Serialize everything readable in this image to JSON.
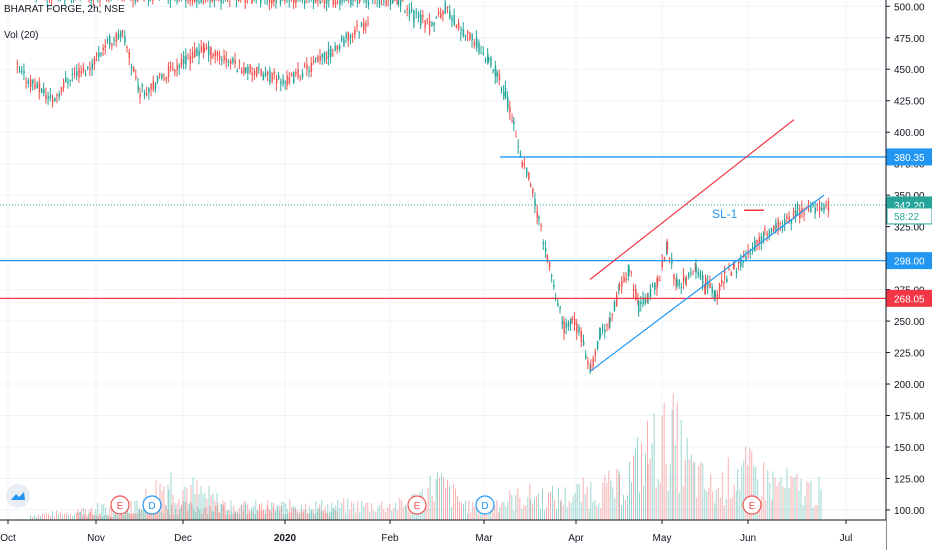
{
  "header": {
    "symbol_line": "BHARAT FORGE, 2h, NSE",
    "volume_line": "Vol (20)"
  },
  "colors": {
    "up": "#26a69a",
    "down": "#ef5350",
    "blue_line": "#2196f3",
    "red_line": "#f23645",
    "grid": "#f0f3fa"
  },
  "chart_data": {
    "type": "candlestick",
    "symbol": "BHARAT FORGE",
    "interval": "2h",
    "exchange": "NSE",
    "x_ticks": [
      "Oct",
      "Nov",
      "Dec",
      "2020",
      "Feb",
      "Mar",
      "Apr",
      "May",
      "Jun",
      "Jul"
    ],
    "y_ticks": [
      "500.00",
      "475.00",
      "450.00",
      "425.00",
      "400.00",
      "375.00",
      "350.00",
      "325.00",
      "300.00",
      "275.00",
      "250.00",
      "225.00",
      "200.00",
      "175.00",
      "150.00",
      "125.00",
      "100.00"
    ],
    "ylim": [
      92,
      505
    ],
    "price_trend": [
      {
        "month": "Oct",
        "price": 448
      },
      {
        "month": "Oct",
        "price": 438
      },
      {
        "month": "Oct",
        "price": 425
      },
      {
        "month": "Oct",
        "price": 445
      },
      {
        "month": "Oct",
        "price": 450
      },
      {
        "month": "Nov",
        "price": 470
      },
      {
        "month": "Nov",
        "price": 478
      },
      {
        "month": "Nov",
        "price": 432
      },
      {
        "month": "Nov",
        "price": 440
      },
      {
        "month": "Nov",
        "price": 452
      },
      {
        "month": "Dec",
        "price": 466
      },
      {
        "month": "Dec",
        "price": 450
      },
      {
        "month": "Dec",
        "price": 440
      },
      {
        "month": "Dec",
        "price": 462
      },
      {
        "month": "Dec",
        "price": 490
      },
      {
        "month": "2020",
        "price": 500
      },
      {
        "month": "2020",
        "price": 497
      },
      {
        "month": "2020",
        "price": 492
      },
      {
        "month": "2020",
        "price": 486
      },
      {
        "month": "2020",
        "price": 510
      },
      {
        "month": "Feb",
        "price": 505
      },
      {
        "month": "Feb",
        "price": 493
      },
      {
        "month": "Feb",
        "price": 485
      },
      {
        "month": "Feb",
        "price": 498
      },
      {
        "month": "Feb",
        "price": 482
      },
      {
        "month": "Feb",
        "price": 470
      },
      {
        "month": "Mar",
        "price": 458
      },
      {
        "month": "Mar",
        "price": 445
      },
      {
        "month": "Mar",
        "price": 430
      },
      {
        "month": "Mar",
        "price": 405
      },
      {
        "month": "Mar",
        "price": 375
      },
      {
        "month": "Mar",
        "price": 360
      },
      {
        "month": "Mar",
        "price": 330
      },
      {
        "month": "Mar",
        "price": 300
      },
      {
        "month": "Mar",
        "price": 270
      },
      {
        "month": "Mar",
        "price": 245
      },
      {
        "month": "Mar",
        "price": 252
      },
      {
        "month": "Apr",
        "price": 238
      },
      {
        "month": "Apr",
        "price": 210
      },
      {
        "month": "Apr",
        "price": 240
      },
      {
        "month": "Apr",
        "price": 248
      },
      {
        "month": "Apr",
        "price": 275
      },
      {
        "month": "Apr",
        "price": 292
      },
      {
        "month": "Apr",
        "price": 262
      },
      {
        "month": "Apr",
        "price": 270
      },
      {
        "month": "Apr",
        "price": 280
      },
      {
        "month": "May",
        "price": 310
      },
      {
        "month": "May",
        "price": 278
      },
      {
        "month": "May",
        "price": 285
      },
      {
        "month": "May",
        "price": 290
      },
      {
        "month": "May",
        "price": 280
      },
      {
        "month": "May",
        "price": 270
      },
      {
        "month": "May",
        "price": 285
      },
      {
        "month": "May",
        "price": 290
      },
      {
        "month": "May",
        "price": 300
      },
      {
        "month": "Jun",
        "price": 320
      },
      {
        "month": "Jun",
        "price": 335
      },
      {
        "month": "Jun",
        "price": 342
      }
    ],
    "volume_trend": [
      {
        "month": "Oct",
        "volume": 97
      },
      {
        "month": "Oct",
        "volume": 100
      },
      {
        "month": "Nov",
        "volume": 95
      },
      {
        "month": "Nov",
        "volume": 112
      },
      {
        "month": "Nov",
        "volume": 135
      },
      {
        "month": "Dec",
        "volume": 104
      },
      {
        "month": "Dec",
        "volume": 102
      },
      {
        "month": "2020",
        "volume": 110
      },
      {
        "month": "2020",
        "volume": 104
      },
      {
        "month": "Feb",
        "volume": 108
      },
      {
        "month": "Feb",
        "volume": 132
      },
      {
        "month": "Feb",
        "volume": 106
      },
      {
        "month": "Mar",
        "volume": 112
      },
      {
        "month": "Mar",
        "volume": 118
      },
      {
        "month": "Mar",
        "volume": 116
      },
      {
        "month": "Apr",
        "volume": 124
      },
      {
        "month": "Apr",
        "volume": 128
      },
      {
        "month": "Apr",
        "volume": 168
      },
      {
        "month": "May",
        "volume": 182
      },
      {
        "month": "May",
        "volume": 140
      },
      {
        "month": "May",
        "volume": 122
      },
      {
        "month": "May",
        "volume": 148
      },
      {
        "month": "Jun",
        "volume": 132
      },
      {
        "month": "Jun",
        "volume": 122
      }
    ],
    "horizontal_lines": [
      {
        "value": 380.35,
        "label": "380.35",
        "color": "#2196f3"
      },
      {
        "value": 342.2,
        "label": "342.20",
        "color": "#26a69a",
        "style": "dotted"
      },
      {
        "value": 298.0,
        "label": "298.00",
        "color": "#2196f3"
      },
      {
        "value": 268.05,
        "label": "268.05",
        "color": "#f23645"
      }
    ],
    "price_tags": [
      "380.35",
      "342.20",
      "58:22",
      "298.00",
      "268.05"
    ],
    "trendlines": [
      {
        "color": "#f23645",
        "from": {
          "month": "Apr",
          "price": 283
        },
        "to": {
          "month": "Jun",
          "price": 410
        }
      },
      {
        "color": "#2196f3",
        "from": {
          "month": "Apr",
          "price": 210
        },
        "to": {
          "month": "Jun",
          "price": 350
        }
      }
    ],
    "annotations": [
      {
        "text": "SL-1",
        "month": "May",
        "price": 335
      }
    ],
    "event_markers": [
      {
        "letter": "E",
        "month": "Nov",
        "color": "#ef5350"
      },
      {
        "letter": "D",
        "month": "Nov",
        "color": "#2196f3"
      },
      {
        "letter": "E",
        "month": "Feb",
        "color": "#ef5350"
      },
      {
        "letter": "D",
        "month": "Mar",
        "color": "#2196f3"
      },
      {
        "letter": "E",
        "month": "Jun",
        "color": "#ef5350"
      }
    ]
  }
}
